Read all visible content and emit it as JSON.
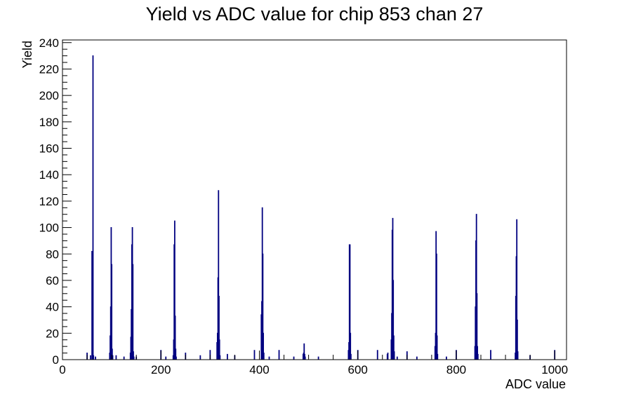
{
  "chart_data": {
    "type": "bar",
    "title": "Yield vs ADC value for chip 853 chan 27",
    "xlabel": "ADC value",
    "ylabel": "Yield",
    "xlim": [
      0,
      1024
    ],
    "ylim": [
      0,
      242
    ],
    "x_ticks": [
      0,
      200,
      400,
      600,
      800,
      1000
    ],
    "y_ticks": [
      0,
      20,
      40,
      60,
      80,
      100,
      120,
      140,
      160,
      180,
      200,
      220,
      240
    ],
    "grid": false,
    "bin_width": 1,
    "line_color": "#000080",
    "bins": [
      [
        50,
        5
      ],
      [
        57,
        3
      ],
      [
        60,
        82
      ],
      [
        61,
        3
      ],
      [
        62,
        230
      ],
      [
        63,
        3
      ],
      [
        67,
        2
      ],
      [
        96,
        5
      ],
      [
        97,
        18
      ],
      [
        98,
        40
      ],
      [
        99,
        100
      ],
      [
        100,
        72
      ],
      [
        101,
        8
      ],
      [
        102,
        3
      ],
      [
        109,
        3
      ],
      [
        125,
        2
      ],
      [
        138,
        5
      ],
      [
        139,
        17
      ],
      [
        140,
        38
      ],
      [
        141,
        87
      ],
      [
        142,
        100
      ],
      [
        143,
        72
      ],
      [
        144,
        6
      ],
      [
        145,
        2
      ],
      [
        150,
        2
      ],
      [
        200,
        7
      ],
      [
        210,
        2
      ],
      [
        225,
        3
      ],
      [
        226,
        15
      ],
      [
        227,
        87
      ],
      [
        228,
        105
      ],
      [
        229,
        33
      ],
      [
        230,
        8
      ],
      [
        231,
        2
      ],
      [
        250,
        5
      ],
      [
        280,
        3
      ],
      [
        300,
        7
      ],
      [
        314,
        13
      ],
      [
        315,
        20
      ],
      [
        316,
        62
      ],
      [
        317,
        128
      ],
      [
        318,
        48
      ],
      [
        319,
        15
      ],
      [
        320,
        3
      ],
      [
        335,
        4
      ],
      [
        350,
        3
      ],
      [
        390,
        7
      ],
      [
        404,
        34
      ],
      [
        405,
        44
      ],
      [
        406,
        115
      ],
      [
        407,
        80
      ],
      [
        408,
        20
      ],
      [
        409,
        5
      ],
      [
        420,
        2
      ],
      [
        440,
        7
      ],
      [
        470,
        2
      ],
      [
        489,
        4
      ],
      [
        490,
        5
      ],
      [
        491,
        12
      ],
      [
        492,
        4
      ],
      [
        493,
        2
      ],
      [
        520,
        2
      ],
      [
        581,
        7
      ],
      [
        582,
        13
      ],
      [
        583,
        87
      ],
      [
        584,
        87
      ],
      [
        585,
        20
      ],
      [
        586,
        4
      ],
      [
        600,
        7
      ],
      [
        640,
        7
      ],
      [
        660,
        4
      ],
      [
        661,
        5
      ],
      [
        668,
        15
      ],
      [
        669,
        35
      ],
      [
        670,
        98
      ],
      [
        671,
        107
      ],
      [
        672,
        60
      ],
      [
        673,
        18
      ],
      [
        674,
        6
      ],
      [
        680,
        2
      ],
      [
        700,
        6
      ],
      [
        720,
        2
      ],
      [
        757,
        10
      ],
      [
        758,
        20
      ],
      [
        759,
        97
      ],
      [
        760,
        80
      ],
      [
        761,
        18
      ],
      [
        762,
        4
      ],
      [
        780,
        2
      ],
      [
        800,
        7
      ],
      [
        838,
        10
      ],
      [
        839,
        40
      ],
      [
        840,
        90
      ],
      [
        841,
        110
      ],
      [
        842,
        50
      ],
      [
        843,
        10
      ],
      [
        844,
        4
      ],
      [
        870,
        7
      ],
      [
        920,
        5
      ],
      [
        921,
        48
      ],
      [
        922,
        78
      ],
      [
        923,
        106
      ],
      [
        924,
        30
      ],
      [
        925,
        6
      ],
      [
        950,
        3
      ],
      [
        1000,
        7
      ]
    ]
  }
}
